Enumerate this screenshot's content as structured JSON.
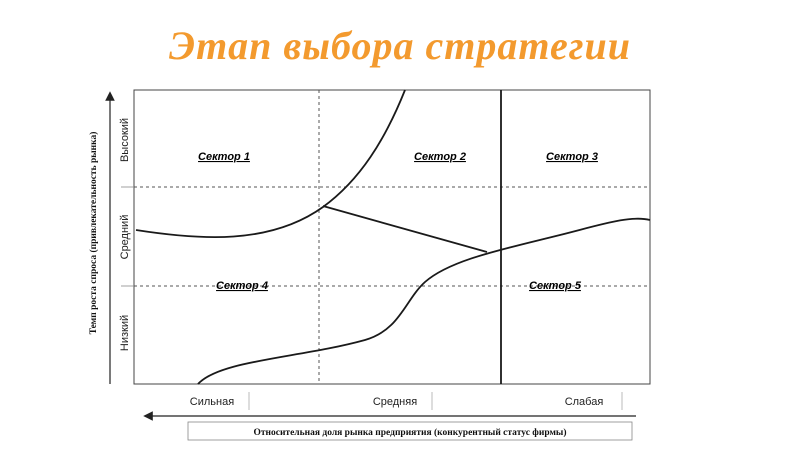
{
  "title": "Этап выбора стратегии",
  "colors": {
    "title": "#F39A2E",
    "line": "#1a1a1a",
    "grid": "#555555",
    "frame": "#444444"
  },
  "sectors": {
    "s1": "Сектор 1",
    "s2": "Сектор 2",
    "s3": "Сектор 3",
    "s4": "Сектор 4",
    "s5": "Сектор 5"
  },
  "y_axis": {
    "title": "Темп роста спроса (привлекательность рынка)",
    "levels": {
      "high": "Высокий",
      "mid": "Средний",
      "low": "Низкий"
    }
  },
  "x_axis": {
    "title": "Относительная  доля рынка  предприятия  (конкурентный  статус фирмы)",
    "levels": {
      "strong": "Сильная",
      "mid": "Средняя",
      "weak": "Слабая"
    }
  }
}
